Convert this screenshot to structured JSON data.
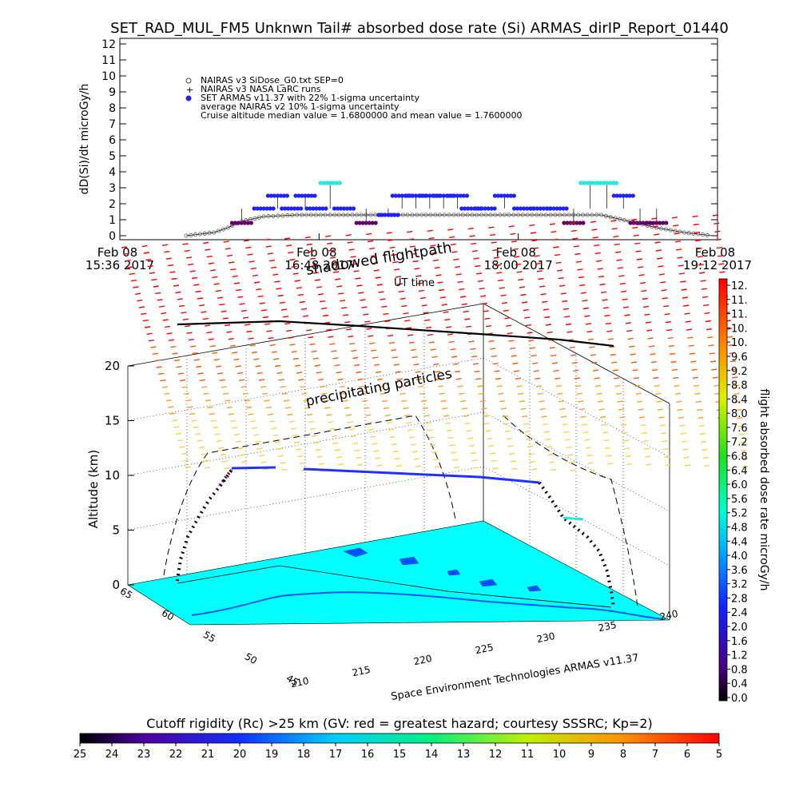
{
  "colors": {
    "nairas_sidose": "#444444",
    "nasa_larc": "#000000",
    "armas_blue": "#2020ff",
    "armas_cyan": "#22e8e8",
    "armas_purple": "#660066",
    "map_ocean": "#00ffff",
    "map_land": "#0050ff"
  },
  "chart_data": [
    {
      "type": "scatter",
      "title": "SET_RAD_MUL_FM5 Unknwn Tail#  absorbed dose rate (Si) ARMAS_dirIP_Report_01440",
      "ylabel": "dD(Si)/dt microGy/h",
      "xlabel": "UT time",
      "ylim": [
        0,
        12
      ],
      "yticks": [
        "0",
        "1",
        "2",
        "3",
        "4",
        "5",
        "6",
        "7",
        "8",
        "9",
        "10",
        "11",
        "12"
      ],
      "xticks": [
        {
          "date": "Feb 08",
          "time": "15:36 2017"
        },
        {
          "date": "Feb 08",
          "time": "16:48 2017"
        },
        {
          "date": "Feb 08",
          "time": "18:00 2017"
        },
        {
          "date": "Feb 08",
          "time": "19:12 2017"
        }
      ],
      "xlim": [
        "15:36",
        "19:12"
      ],
      "legend": [
        "NAIRAS v3 SiDose_G0.txt SEP=0",
        "NAIRAS v3 NASA LaRC runs",
        "SET ARMAS v11.37 with 22% 1-sigma uncertainty",
        "average NAIRAS v2 10% 1-sigma uncertainty",
        "Cruise altitude median value = 1.6800000 and mean value = 1.7600000"
      ],
      "series": [
        {
          "name": "NAIRAS v3 SiDose_G0.txt SEP=0",
          "x": [
            "16:00",
            "16:10",
            "16:15",
            "16:20",
            "16:28",
            "16:40",
            "16:52",
            "17:00",
            "17:20",
            "17:40",
            "18:00",
            "18:20",
            "18:30",
            "18:40",
            "18:50",
            "19:00",
            "19:10"
          ],
          "y": [
            0,
            0.2,
            0.5,
            0.9,
            1.2,
            1.3,
            1.3,
            1.3,
            1.3,
            1.3,
            1.3,
            1.3,
            1.3,
            0.9,
            0.5,
            0.2,
            0
          ]
        },
        {
          "name": "SET ARMAS v11.37 with 22% 1-sigma uncertainty",
          "x": [
            "16:20",
            "16:28",
            "16:33",
            "16:38",
            "16:43",
            "16:47",
            "16:52",
            "16:57",
            "17:05",
            "17:13",
            "17:18",
            "17:23",
            "17:28",
            "17:33",
            "17:38",
            "17:43",
            "17:48",
            "17:55",
            "18:02",
            "18:08",
            "18:14",
            "18:20",
            "18:26",
            "18:32",
            "18:38",
            "18:44",
            "18:50"
          ],
          "y": [
            0.8,
            1.7,
            2.5,
            1.7,
            2.5,
            1.7,
            3.3,
            1.7,
            0.8,
            1.3,
            2.5,
            2.5,
            2.5,
            2.5,
            2.5,
            1.7,
            1.7,
            2.5,
            1.7,
            1.7,
            1.7,
            0.8,
            3.3,
            3.3,
            2.5,
            0.8,
            0.8
          ]
        }
      ]
    },
    {
      "type": "scatter",
      "title": "",
      "zlabel": "Altitude (km)",
      "zticks": [
        "0",
        "5",
        "10",
        "15",
        "20"
      ],
      "lon_ticks": [
        "210",
        "215",
        "220",
        "225",
        "230",
        "235",
        "240"
      ],
      "lat_ticks": [
        "65",
        "60",
        "55",
        "50",
        "45"
      ],
      "annotations": [
        "shadowed flightpath",
        "precipitating particles"
      ],
      "credit": "Space Environment Technologies ARMAS v11.37",
      "series": [
        {
          "name": "flightpath",
          "lon": [
            211,
            213,
            216,
            222,
            228,
            233,
            236,
            238
          ],
          "lat": [
            62,
            61,
            60,
            58,
            56,
            53,
            50,
            48
          ],
          "alt": [
            0,
            5,
            11,
            11,
            11,
            11,
            5,
            0
          ]
        }
      ]
    },
    {
      "type": "heatmap",
      "colorbar": {
        "label": "flight absorbed dose rate microGy/h",
        "ticks": [
          "12.",
          "11.",
          "11.",
          "10.",
          "10.",
          "9.6",
          "9.2",
          "8.8",
          "8.4",
          "8.0",
          "7.6",
          "7.2",
          "6.8",
          "6.4",
          "6.0",
          "5.6",
          "5.2",
          "4.8",
          "4.4",
          "4.0",
          "3.6",
          "3.2",
          "2.8",
          "2.4",
          "2.0",
          "1.6",
          "1.2",
          "0.8",
          "0.4",
          "0.0"
        ]
      }
    },
    {
      "type": "heatmap",
      "colorbar": {
        "label": "Cutoff rigidity (Rc) >25 km (GV: red = greatest hazard; courtesy SSSRC; Kp=2)",
        "ticks": [
          "25",
          "24",
          "23",
          "22",
          "21",
          "20",
          "19",
          "18",
          "17",
          "16",
          "15",
          "14",
          "13",
          "12",
          "11",
          "10",
          "9",
          "8",
          "7",
          "6",
          "5"
        ]
      }
    }
  ]
}
